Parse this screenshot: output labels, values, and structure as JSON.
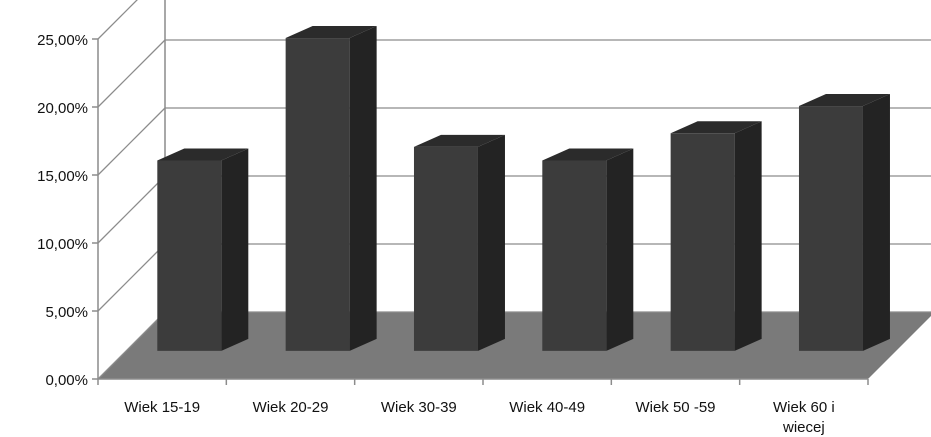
{
  "chart_data": {
    "type": "bar",
    "categories": [
      "Wiek 15-19",
      "Wiek 20-29",
      "Wiek 30-39",
      "Wiek 40-49",
      "Wiek 50 -59",
      "Wiek 60 i wiecej"
    ],
    "category_lines": [
      [
        "Wiek 15-19"
      ],
      [
        "Wiek 20-29"
      ],
      [
        "Wiek 30-39"
      ],
      [
        "Wiek 40-49"
      ],
      [
        "Wiek 50 -59"
      ],
      [
        "Wiek 60 i",
        "wiecej"
      ]
    ],
    "values": [
      14.0,
      23.0,
      15.0,
      14.0,
      16.0,
      18.0
    ],
    "title": "",
    "xlabel": "",
    "ylabel": "",
    "ylim": [
      0,
      25
    ],
    "y_ticks": [
      0,
      5,
      10,
      15,
      20,
      25
    ],
    "y_tick_labels": [
      "0,00%",
      "5,00%",
      "10,00%",
      "15,00%",
      "20,00%",
      "25,00%"
    ],
    "grid": true,
    "legend": "none",
    "style": "3d",
    "colors": {
      "bar_front": "#3c3c3c",
      "bar_side": "#232323",
      "bar_top": "#2b2b2b",
      "floor": "#7a7a7a",
      "grid": "#8c8c8c",
      "axis": "#8c8c8c"
    }
  }
}
